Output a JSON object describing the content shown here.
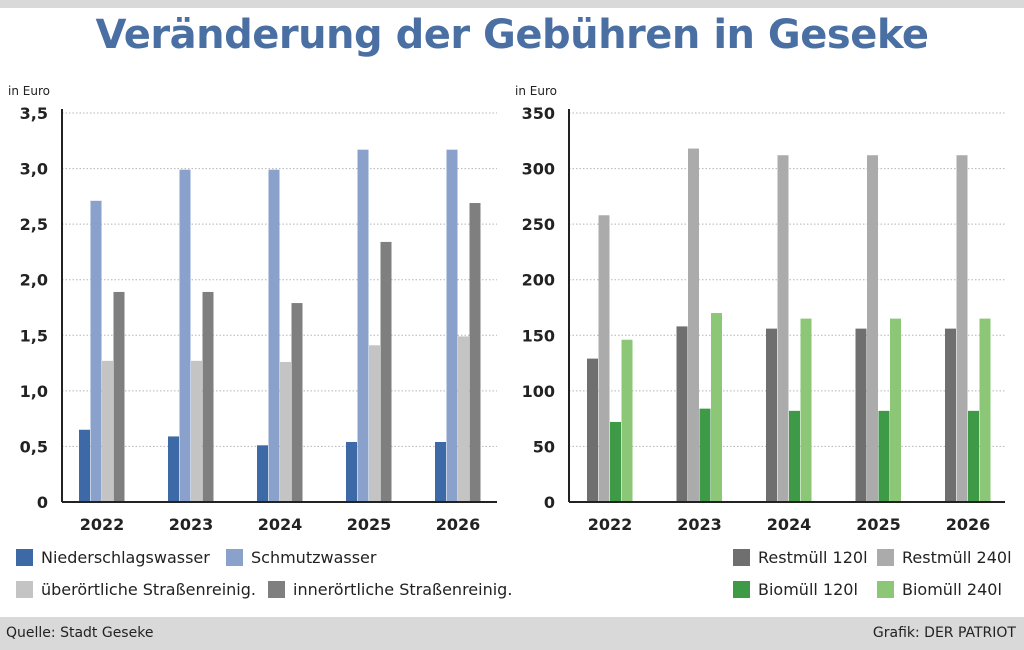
{
  "title": "Veränderung der Gebühren in Geseke",
  "footer": {
    "source": "Quelle: Stadt Geseke",
    "credit": "Grafik: DER PATRIOT"
  },
  "chart_data": [
    {
      "type": "bar",
      "title": "",
      "ylabel": "in Euro",
      "xlabel": "",
      "ylim": [
        0,
        3.5
      ],
      "yticks": [
        "0",
        "0,5",
        "1,0",
        "1,5",
        "2,0",
        "2,5",
        "3,0",
        "3,5"
      ],
      "ytick_values": [
        0,
        0.5,
        1.0,
        1.5,
        2.0,
        2.5,
        3.0,
        3.5
      ],
      "grid": true,
      "legend_placement": "bottom",
      "categories": [
        "2022",
        "2023",
        "2024",
        "2025",
        "2026"
      ],
      "series": [
        {
          "name": "Niederschlagswasser",
          "color": "#3d6aa6",
          "values": [
            0.65,
            0.59,
            0.51,
            0.54,
            0.54
          ]
        },
        {
          "name": "Schmutzwasser",
          "color": "#8aa2cb",
          "values": [
            2.71,
            2.99,
            2.99,
            3.17,
            3.17
          ]
        },
        {
          "name": "überörtliche Straßenreinig.",
          "color": "#c4c4c4",
          "values": [
            1.27,
            1.27,
            1.26,
            1.41,
            1.49
          ]
        },
        {
          "name": "innerörtliche Straßenreinig.",
          "color": "#7f7f7f",
          "values": [
            1.89,
            1.89,
            1.79,
            2.34,
            2.69
          ]
        }
      ]
    },
    {
      "type": "bar",
      "title": "",
      "ylabel": "in Euro",
      "xlabel": "",
      "ylim": [
        0,
        350
      ],
      "yticks": [
        "0",
        "50",
        "100",
        "150",
        "200",
        "250",
        "300",
        "350"
      ],
      "ytick_values": [
        0,
        50,
        100,
        150,
        200,
        250,
        300,
        350
      ],
      "grid": true,
      "legend_placement": "bottom-right",
      "categories": [
        "2022",
        "2023",
        "2024",
        "2025",
        "2026"
      ],
      "series": [
        {
          "name": "Restmüll 120l",
          "color": "#6f6f6f",
          "values": [
            129,
            158,
            156,
            156,
            156
          ]
        },
        {
          "name": "Restmüll 240l",
          "color": "#ababab",
          "values": [
            258,
            318,
            312,
            312,
            312
          ]
        },
        {
          "name": "Biomüll 120l",
          "color": "#3f9a48",
          "values": [
            72,
            84,
            82,
            82,
            82
          ]
        },
        {
          "name": "Biomüll 240l",
          "color": "#8bc777",
          "values": [
            146,
            170,
            165,
            165,
            165
          ]
        }
      ]
    }
  ]
}
